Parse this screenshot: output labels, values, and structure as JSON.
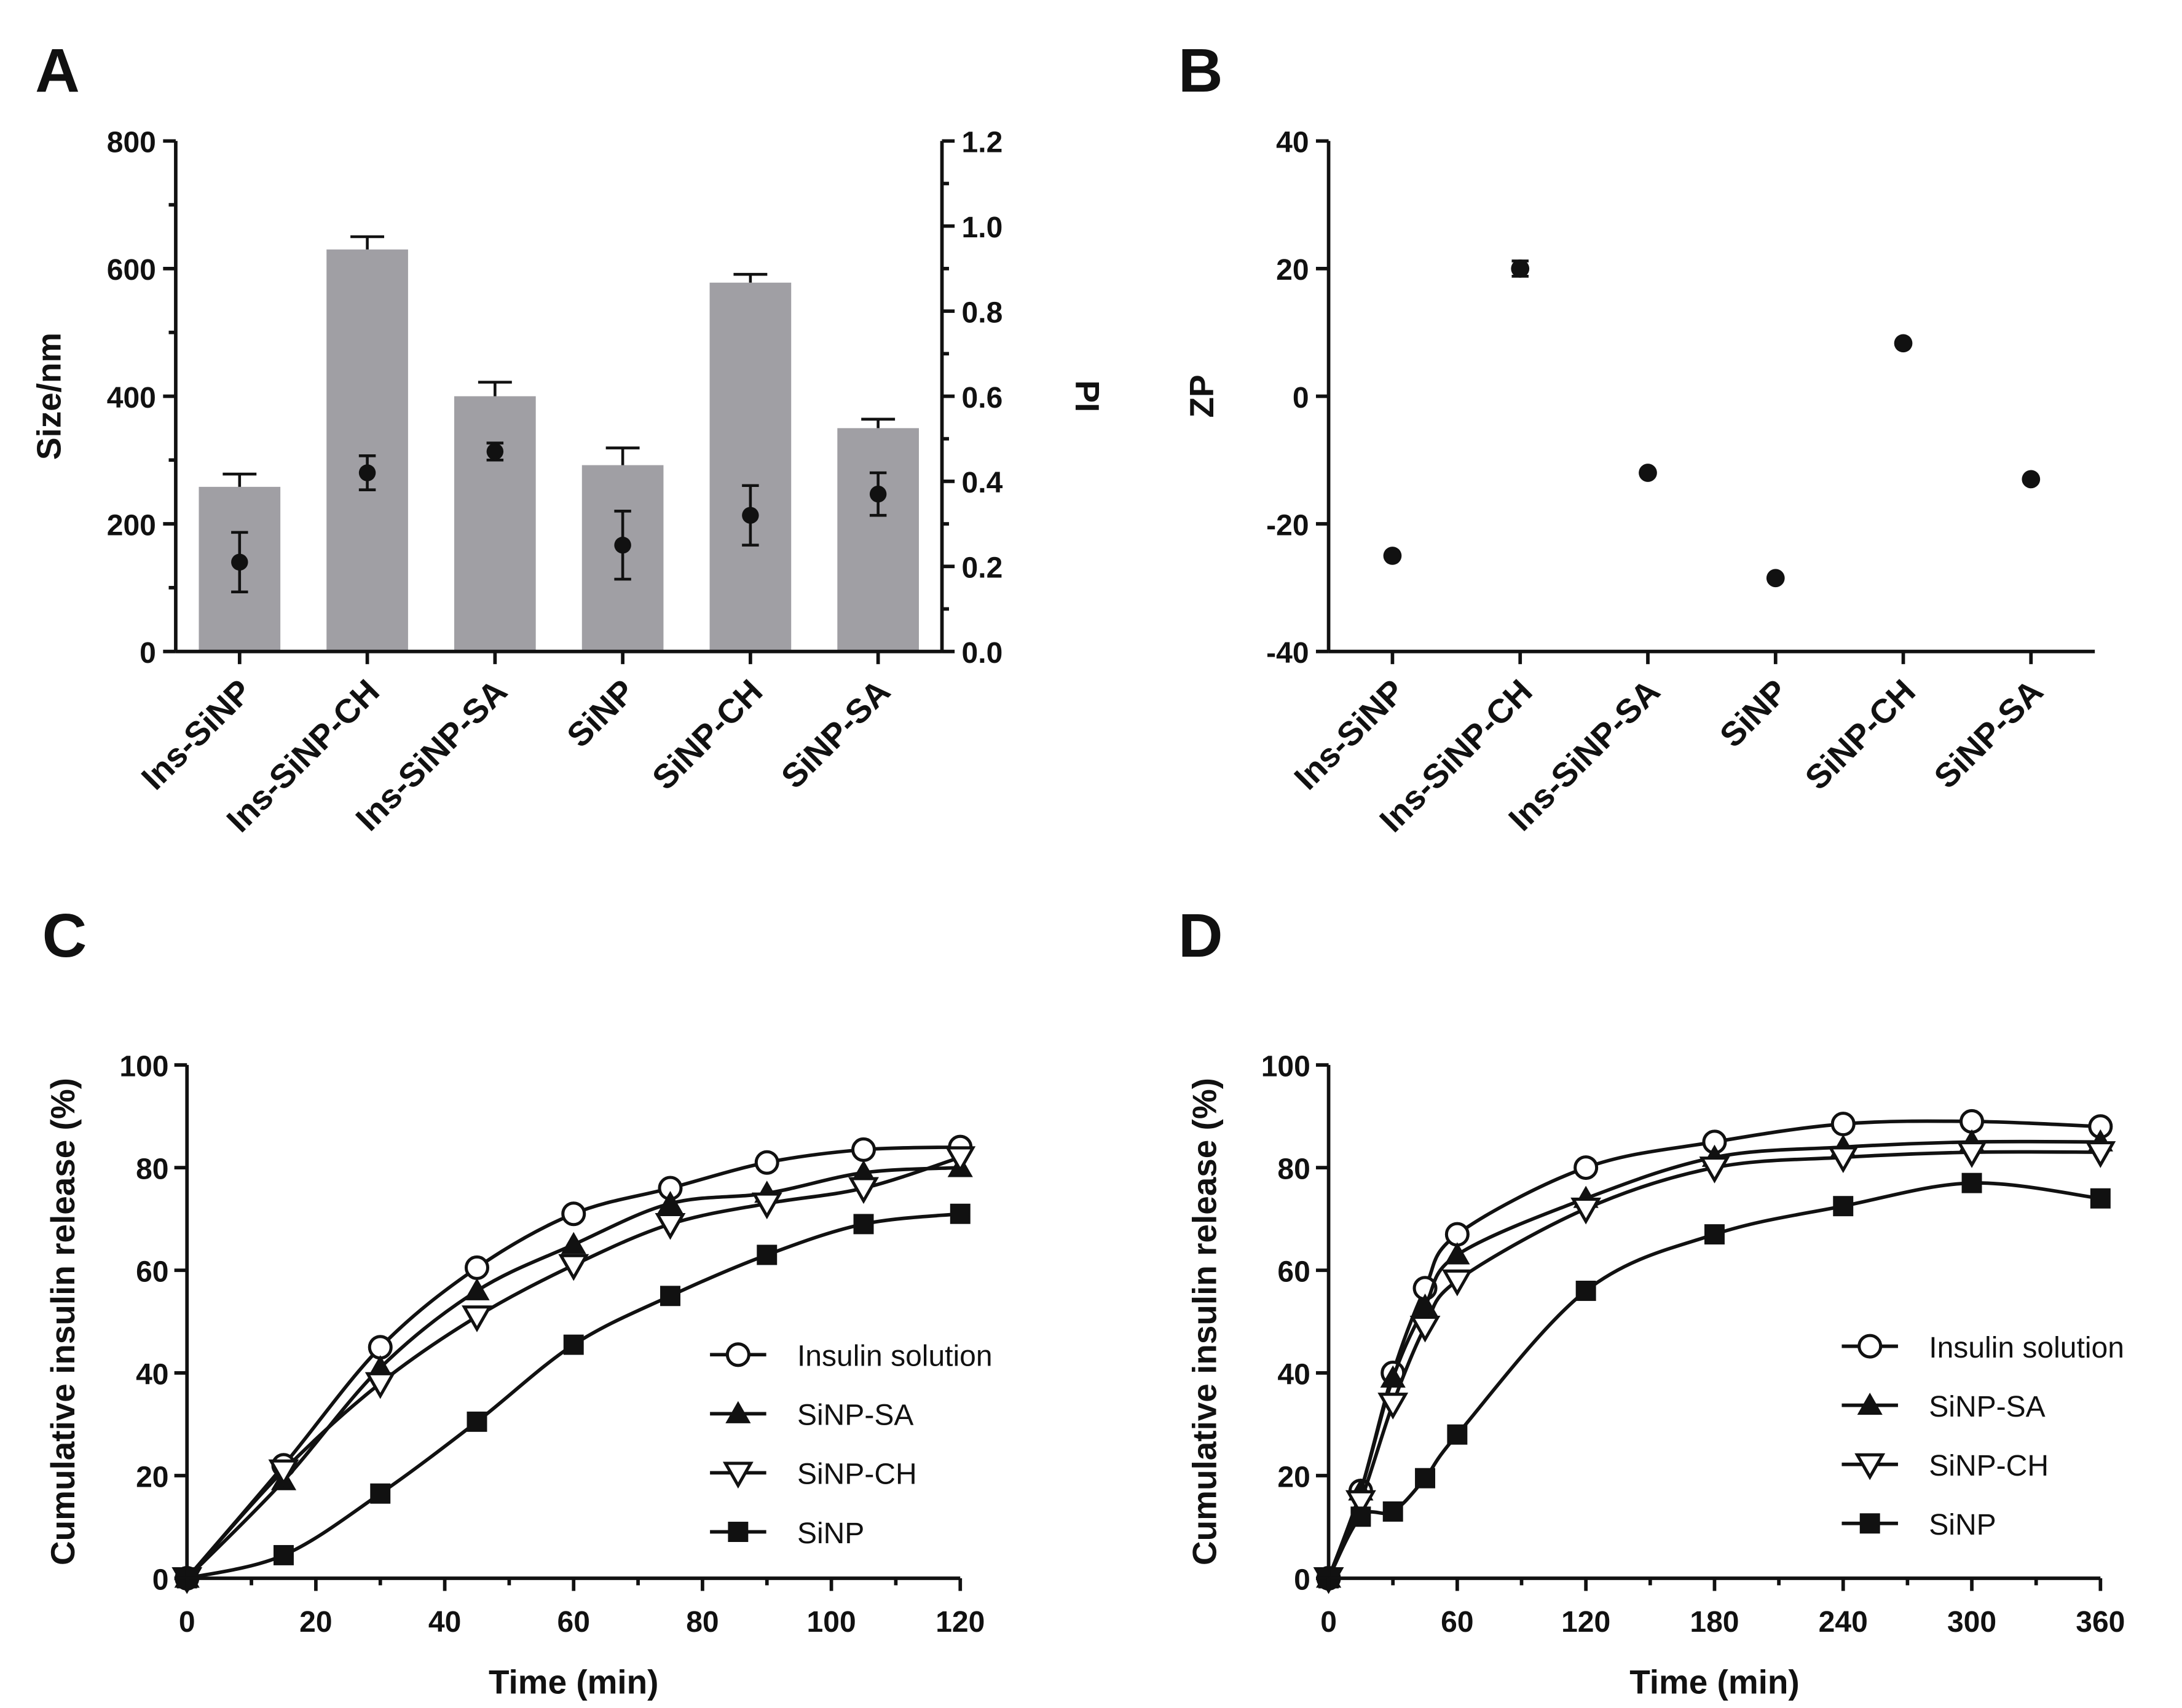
{
  "chart_data": [
    {
      "panel": "A",
      "type": "bar",
      "categories": [
        "Ins-SiNP",
        "Ins-SiNP-CH",
        "Ins-SiNP-SA",
        "SiNP",
        "SiNP-CH",
        "SiNP-SA"
      ],
      "ylabel": "Size/nm",
      "ylim": [
        0,
        800
      ],
      "yticks": [
        0,
        200,
        400,
        600,
        800
      ],
      "y2label": "PI",
      "y2lim": [
        0,
        1.2
      ],
      "y2ticks": [
        "0.0",
        "0.2",
        "0.4",
        "0.6",
        "0.8",
        "1.0",
        "1.2"
      ],
      "series": [
        {
          "name": "Size",
          "axis": "left",
          "values": [
            258,
            630,
            400,
            292,
            578,
            350
          ],
          "errors": [
            20,
            20,
            22,
            27,
            13,
            14
          ],
          "color": "#a09fa4"
        },
        {
          "name": "PI",
          "axis": "right",
          "values": [
            0.21,
            0.42,
            0.47,
            0.25,
            0.32,
            0.37
          ],
          "errors": [
            0.07,
            0.04,
            0.02,
            0.08,
            0.07,
            0.05
          ]
        }
      ]
    },
    {
      "panel": "B",
      "type": "scatter",
      "categories": [
        "Ins-SiNP",
        "Ins-SiNP-CH",
        "Ins-SiNP-SA",
        "SiNP",
        "SiNP-CH",
        "SiNP-SA"
      ],
      "ylabel": "ZP",
      "ylim": [
        -40,
        40
      ],
      "yticks": [
        -40,
        -20,
        0,
        20,
        40
      ],
      "values": [
        -25,
        20,
        -12,
        -28.5,
        8.3,
        -13
      ],
      "errors": [
        0,
        1.2,
        0,
        0,
        0,
        0
      ]
    },
    {
      "panel": "C",
      "type": "line",
      "xlabel": "Time (min)",
      "ylabel": "Cumulative insulin release (%)",
      "xlim": [
        0,
        120
      ],
      "ylim": [
        0,
        100
      ],
      "xticks": [
        0,
        20,
        40,
        60,
        80,
        100,
        120
      ],
      "yticks": [
        0,
        20,
        40,
        60,
        80,
        100
      ],
      "x": [
        0,
        15,
        30,
        45,
        60,
        75,
        90,
        105,
        120
      ],
      "legend": "right",
      "series": [
        {
          "name": "Insulin solution",
          "marker": "circle-open",
          "values": [
            0,
            22,
            45,
            60.5,
            71,
            76,
            81,
            83.5,
            84
          ]
        },
        {
          "name": "SiNP-SA",
          "marker": "triangle",
          "values": [
            0,
            19,
            41,
            56,
            65,
            73,
            75,
            79,
            80
          ]
        },
        {
          "name": "SiNP-CH",
          "marker": "triangle-down-open",
          "values": [
            0,
            21,
            38,
            51,
            61,
            69,
            73,
            76,
            82
          ]
        },
        {
          "name": "SiNP",
          "marker": "square",
          "values": [
            0,
            4.5,
            16.5,
            30.5,
            45.5,
            55,
            63,
            69,
            71
          ]
        }
      ]
    },
    {
      "panel": "D",
      "type": "line",
      "xlabel": "Time (min)",
      "ylabel": "Cumulative insulin release (%)",
      "xlim": [
        0,
        360
      ],
      "ylim": [
        0,
        100
      ],
      "xticks": [
        0,
        60,
        120,
        180,
        240,
        300,
        360
      ],
      "yticks": [
        0,
        20,
        40,
        60,
        80,
        100
      ],
      "x": [
        0,
        15,
        30,
        45,
        60,
        120,
        180,
        240,
        300,
        360
      ],
      "legend": "right",
      "series": [
        {
          "name": "Insulin solution",
          "marker": "circle-open",
          "values": [
            0,
            17,
            40,
            56.5,
            67,
            80,
            85,
            88.5,
            89,
            88
          ]
        },
        {
          "name": "SiNP-SA",
          "marker": "triangle",
          "values": [
            0,
            17,
            39,
            53,
            63,
            74,
            82,
            84,
            85,
            85
          ]
        },
        {
          "name": "SiNP-CH",
          "marker": "triangle-down-open",
          "values": [
            0,
            15,
            34,
            49,
            58,
            72,
            80,
            82,
            83,
            83
          ]
        },
        {
          "name": "SiNP",
          "marker": "square",
          "values": [
            0,
            12,
            13,
            19.5,
            28,
            56,
            67,
            72.5,
            77,
            74
          ]
        }
      ]
    }
  ]
}
